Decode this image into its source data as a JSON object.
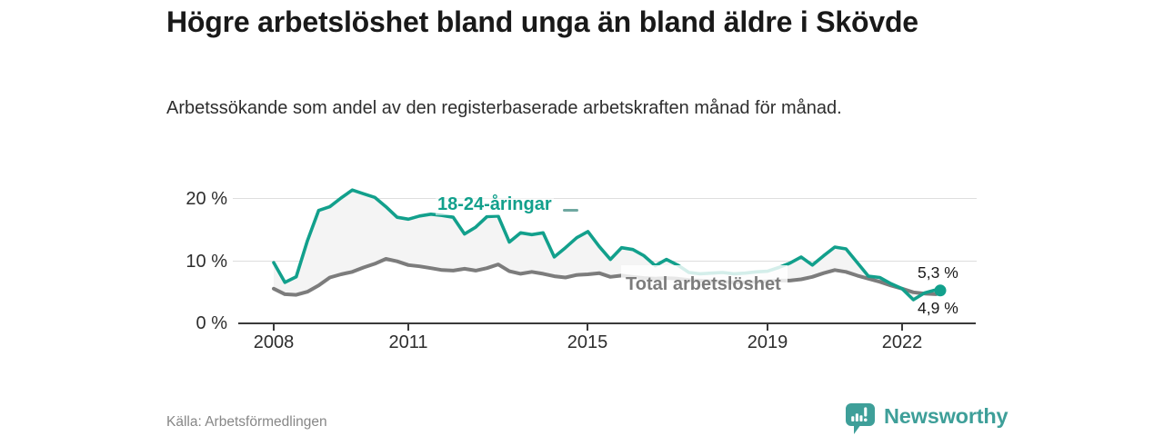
{
  "header": {
    "title": "Högre arbetslöshet bland unga än bland äldre i Skövde",
    "subtitle": "Arbetssökande som andel av den registerbaserade arbetskraften månad för månad."
  },
  "chart_data": {
    "type": "line",
    "title": "Högre arbetslöshet bland unga än bland äldre i Skövde",
    "subtitle": "Arbetssökande som andel av den registerbaserade arbetskraften månad för månad.",
    "unit": "%",
    "grid": "horizontal-only",
    "xlim": [
      2007.21,
      2023.64
    ],
    "ylim": [
      0,
      22.84
    ],
    "x_tick_labels": [
      "2008",
      "2011",
      "2015",
      "2019",
      "2022"
    ],
    "x_tick_values": [
      2008,
      2011,
      2015,
      2019,
      2022
    ],
    "y_tick_labels": [
      "0 %",
      "10 %",
      "20 %"
    ],
    "y_tick_values": [
      0,
      10,
      20
    ],
    "x": [
      2008,
      2008.25,
      2008.5,
      2008.75,
      2009,
      2009.25,
      2009.5,
      2009.75,
      2010,
      2010.25,
      2010.5,
      2010.75,
      2011,
      2011.25,
      2011.5,
      2011.75,
      2012,
      2012.25,
      2012.5,
      2012.75,
      2013,
      2013.25,
      2013.5,
      2013.75,
      2014,
      2014.25,
      2014.5,
      2014.75,
      2015,
      2015.25,
      2015.5,
      2015.75,
      2016,
      2016.25,
      2016.5,
      2016.75,
      2017,
      2017.25,
      2017.5,
      2017.75,
      2018,
      2018.25,
      2018.5,
      2018.75,
      2019,
      2019.25,
      2019.5,
      2019.75,
      2020,
      2020.25,
      2020.5,
      2020.75,
      2021,
      2021.25,
      2021.5,
      2021.75,
      2022,
      2022.25,
      2022.5,
      2022.75,
      2022.85
    ],
    "series": [
      {
        "name": "18-24-åringar",
        "color": "#12a08c",
        "end_label": "5,3 %",
        "end_value": 5.3,
        "values": [
          9.8,
          6.6,
          7.5,
          13.3,
          18.2,
          18.8,
          20.2,
          21.5,
          20.9,
          20.3,
          18.8,
          17.1,
          16.8,
          17.3,
          17.6,
          17.4,
          17.1,
          14.4,
          15.5,
          17.2,
          17.3,
          13.1,
          14.6,
          14.3,
          14.6,
          10.7,
          12.2,
          13.8,
          14.8,
          12.4,
          10.3,
          12.2,
          11.9,
          10.9,
          9.3,
          10.3,
          9.4,
          8.2,
          8.0,
          8.1,
          8.2,
          8.0,
          8.1,
          8.3,
          8.4,
          9.0,
          9.7,
          10.7,
          9.4,
          10.9,
          12.3,
          12.0,
          9.8,
          7.6,
          7.4,
          6.4,
          5.6,
          3.8,
          4.9,
          5.4,
          5.3
        ]
      },
      {
        "name": "Total arbetslöshet",
        "color": "#7c7c7c",
        "end_label": "4,9 %",
        "end_value": 4.9,
        "values": [
          5.6,
          4.7,
          4.6,
          5.1,
          6.1,
          7.4,
          7.9,
          8.3,
          9.0,
          9.6,
          10.4,
          10.0,
          9.4,
          9.2,
          8.9,
          8.6,
          8.5,
          8.8,
          8.5,
          8.9,
          9.5,
          8.4,
          8.0,
          8.3,
          8.0,
          7.6,
          7.4,
          7.8,
          7.9,
          8.1,
          7.5,
          7.7,
          7.5,
          7.3,
          7.2,
          7.3,
          7.2,
          7.0,
          6.9,
          6.8,
          6.7,
          6.6,
          6.6,
          6.7,
          6.8,
          6.9,
          6.9,
          7.1,
          7.5,
          8.1,
          8.6,
          8.3,
          7.7,
          7.2,
          6.7,
          6.1,
          5.6,
          5.0,
          4.8,
          4.7,
          4.9
        ]
      }
    ],
    "between_fill_color": "#f4f4f4",
    "annotations": [
      "18-24-åringar",
      "Total arbetslöshet",
      "5,3 %",
      "4,9 %"
    ]
  },
  "footer": {
    "source": "Källa: Arbetsförmedlingen",
    "logo_text": "Newsworthy",
    "logo_color": "#3e9f99"
  }
}
